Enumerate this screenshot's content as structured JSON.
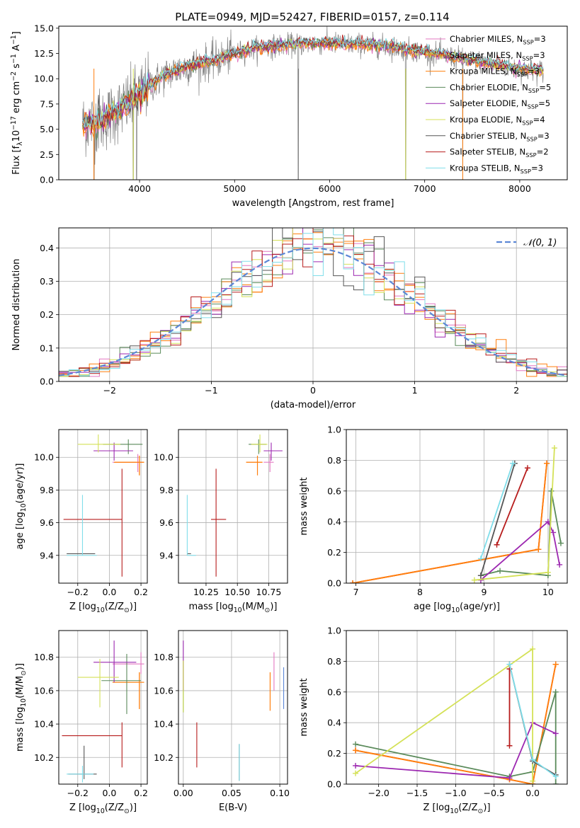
{
  "figure_title": "PLATE=0949, MJD=52427, FIBERID=0157, z=0.114",
  "models": [
    {
      "name": "Chabrier MILES, N$_{SSP}$=3",
      "legend": [
        "Chabrier MILES, N",
        "SSP",
        "=3"
      ],
      "color": "#e377c2"
    },
    {
      "name": "Salpeter MILES, N$_{SSP}$=3",
      "legend": [
        "Salpeter MILES, N",
        "SSP",
        "=3"
      ],
      "color": "#ff7f0e"
    },
    {
      "name": "Kroupa MILES, N$_{SSP}$=3",
      "legend": [
        "Kroupa MILES, N",
        "SSP",
        "=3"
      ],
      "color": "#ff7f0e"
    },
    {
      "name": "Chabrier ELODIE, N$_{SSP}$=5",
      "legend": [
        "Chabrier ELODIE, N",
        "SSP",
        "=5"
      ],
      "color": "#5a8a5a"
    },
    {
      "name": "Salpeter ELODIE, N$_{SSP}$=5",
      "legend": [
        "Salpeter ELODIE, N",
        "SSP",
        "=5"
      ],
      "color": "#9c27b0"
    },
    {
      "name": "Kroupa ELODIE, N$_{SSP}$=4",
      "legend": [
        "Kroupa ELODIE, N",
        "SSP",
        "=4"
      ],
      "color": "#d4e157"
    },
    {
      "name": "Chabrier STELIB, N$_{SSP}$=3",
      "legend": [
        "Chabrier STELIB, N",
        "SSP",
        "=3"
      ],
      "color": "#555555"
    },
    {
      "name": "Salpeter STELIB, N$_{SSP}$=2",
      "legend": [
        "Salpeter STELIB, N",
        "SSP",
        "=2"
      ],
      "color": "#b71c1c"
    },
    {
      "name": "Kroupa STELIB, N$_{SSP}$=3",
      "legend": [
        "Kroupa STELIB, N",
        "SSP",
        "=3"
      ],
      "color": "#80deea"
    }
  ],
  "chart_data": [
    {
      "id": "spectrum",
      "type": "line",
      "xlabel": "wavelength [Angstrom, rest frame]",
      "ylabel": "Flux [f$_\\lambda$10$^{-17}$ erg cm$^{-2}$ s$^{-1}$ A$^{-1}$]",
      "xlim": [
        3150,
        8500
      ],
      "ylim": [
        0,
        15.2
      ],
      "xticks": [
        4000,
        5000,
        6000,
        7000,
        8000
      ],
      "yticks": [
        0.0,
        2.5,
        5.0,
        7.5,
        10.0,
        12.5,
        15.0
      ],
      "ytick_labels": [
        "0.0",
        "2.5",
        "5.0",
        "7.5",
        "10.0",
        "12.5",
        "15.0"
      ],
      "grid": false,
      "legend_position": "right",
      "continuum": {
        "x": [
          3400,
          3600,
          3800,
          3950,
          4100,
          4300,
          4500,
          4800,
          5000,
          5200,
          5500,
          5800,
          6000,
          6300,
          6600,
          6900,
          7200,
          7500,
          7800,
          8000,
          8200
        ],
        "y": [
          5.5,
          5.8,
          7.0,
          8.0,
          9.3,
          10.5,
          11.2,
          11.8,
          12.5,
          13.0,
          13.3,
          13.5,
          13.5,
          13.4,
          13.2,
          12.8,
          12.3,
          11.8,
          11.3,
          10.9,
          10.8
        ]
      },
      "absorption_lines": [
        3520,
        3934,
        3969,
        5670,
        6800,
        7400
      ]
    },
    {
      "id": "residuals",
      "type": "step",
      "xlabel": "(data-model)/error",
      "ylabel": "Normed distribution",
      "xlim": [
        -2.5,
        2.5
      ],
      "ylim": [
        0,
        0.46
      ],
      "xticks": [
        -2,
        -1,
        0,
        1,
        2
      ],
      "xtick_labels": [
        "−2",
        "−1",
        "0",
        "1",
        "2"
      ],
      "yticks": [
        0.0,
        0.1,
        0.2,
        0.3,
        0.4
      ],
      "ytick_labels": [
        "0.0",
        "0.1",
        "0.2",
        "0.3",
        "0.4"
      ],
      "grid": true,
      "reference_curve": {
        "name": "$\\mathcal{N}(0,1)$",
        "label": "𝒩(0, 1)",
        "color": "#5c87d6",
        "mean": 0,
        "sigma": 1
      },
      "bin_width": 0.1,
      "legend_position": "top-right"
    },
    {
      "id": "age-vs-Z",
      "type": "errorbar",
      "xlabel": "Z [log$_{10}$(Z/Z$_\\odot$)]",
      "ylabel": "age  [log$_{10}$(age/yr)]",
      "xlim": [
        -0.32,
        0.24
      ],
      "ylim": [
        9.23,
        10.17
      ],
      "xticks": [
        -0.2,
        0.0,
        0.2
      ],
      "xtick_labels": [
        "−0.2",
        "0.0",
        "0.2"
      ],
      "yticks": [
        9.4,
        9.6,
        9.8,
        10.0
      ],
      "ytick_labels": [
        "9.4",
        "9.6",
        "9.8",
        "10.0"
      ],
      "grid": true,
      "points": [
        {
          "model": 0,
          "x": 0.18,
          "y": 9.97,
          "xerr": [
            0.16,
            0.03
          ],
          "yerr": [
            0.06,
            0.05
          ]
        },
        {
          "model": 1,
          "x": 0.19,
          "y": 9.97,
          "xerr": [
            0.16,
            0.03
          ],
          "yerr": [
            0.08,
            0.04
          ]
        },
        {
          "model": 2,
          "x": 0.19,
          "y": 9.97,
          "xerr": [
            0.16,
            0.03
          ],
          "yerr": [
            0.08,
            0.04
          ]
        },
        {
          "model": 3,
          "x": 0.12,
          "y": 10.08,
          "xerr": [
            0.16,
            0.09
          ],
          "yerr": [
            0.06,
            0.03
          ]
        },
        {
          "model": 4,
          "x": 0.03,
          "y": 10.04,
          "xerr": [
            0.13,
            0.12
          ],
          "yerr": [
            0.06,
            0.05
          ]
        },
        {
          "model": 5,
          "x": -0.07,
          "y": 10.08,
          "xerr": [
            0.13,
            0.14
          ],
          "yerr": [
            0.05,
            0.06
          ]
        },
        {
          "model": 6,
          "x": -0.16,
          "y": 9.41,
          "xerr": [
            0.11,
            0.07
          ],
          "yerr": [
            0.0,
            0.0
          ]
        },
        {
          "model": 7,
          "x": 0.08,
          "y": 9.62,
          "xerr": [
            0.37,
            0.0
          ],
          "yerr": [
            0.35,
            0.31
          ]
        },
        {
          "model": 8,
          "x": -0.17,
          "y": 9.4,
          "xerr": [
            0.1,
            0.09
          ],
          "yerr": [
            0.0,
            0.37
          ]
        }
      ]
    },
    {
      "id": "age-vs-mass",
      "type": "errorbar",
      "xlabel": "mass [log$_{10}$(M/M$_\\odot$)]",
      "ylabel": "",
      "xlim": [
        10.03,
        10.9
      ],
      "ylim": [
        9.23,
        10.17
      ],
      "xticks": [
        10.25,
        10.5,
        10.75
      ],
      "xtick_labels": [
        "10.25",
        "10.50",
        "10.75"
      ],
      "yticks": [
        9.4,
        9.6,
        9.8,
        10.0
      ],
      "ytick_labels": [
        "9.4",
        "9.6",
        "9.8",
        "10.0"
      ],
      "grid": true,
      "points": [
        {
          "model": 0,
          "x": 10.76,
          "y": 9.97,
          "xerr": [
            0.05,
            0.03
          ],
          "yerr": [
            0.06,
            0.05
          ]
        },
        {
          "model": 1,
          "x": 10.66,
          "y": 9.97,
          "xerr": [
            0.09,
            0.04
          ],
          "yerr": [
            0.08,
            0.04
          ]
        },
        {
          "model": 2,
          "x": 10.66,
          "y": 9.97,
          "xerr": [
            0.09,
            0.04
          ],
          "yerr": [
            0.08,
            0.04
          ]
        },
        {
          "model": 3,
          "x": 10.67,
          "y": 10.08,
          "xerr": [
            0.08,
            0.06
          ],
          "yerr": [
            0.06,
            0.03
          ]
        },
        {
          "model": 4,
          "x": 10.77,
          "y": 10.04,
          "xerr": [
            0.06,
            0.09
          ],
          "yerr": [
            0.06,
            0.05
          ]
        },
        {
          "model": 5,
          "x": 10.68,
          "y": 10.08,
          "xerr": [
            0.07,
            0.06
          ],
          "yerr": [
            0.05,
            0.06
          ]
        },
        {
          "model": 6,
          "x": 10.1,
          "y": 9.41,
          "xerr": [
            0.0,
            0.03
          ],
          "yerr": [
            0.0,
            0.0
          ]
        },
        {
          "model": 7,
          "x": 10.33,
          "y": 9.62,
          "xerr": [
            0.04,
            0.08
          ],
          "yerr": [
            0.35,
            0.31
          ]
        },
        {
          "model": 8,
          "x": 10.1,
          "y": 9.4,
          "xerr": [
            0.0,
            0.07
          ],
          "yerr": [
            0.0,
            0.37
          ]
        }
      ]
    },
    {
      "id": "weight-vs-age",
      "type": "line",
      "xlabel": "age  [log$_{10}$(age/yr)]",
      "ylabel": "mass weight",
      "xlim": [
        6.85,
        10.3
      ],
      "ylim": [
        0,
        1.0
      ],
      "xticks": [
        7,
        8,
        9,
        10
      ],
      "yticks": [
        0.0,
        0.2,
        0.4,
        0.6,
        0.8,
        1.0
      ],
      "ytick_labels": [
        "0.0",
        "0.2",
        "0.4",
        "0.6",
        "0.8",
        "1.0"
      ],
      "grid": true,
      "series": [
        {
          "model": 0,
          "x": [
            6.95,
            9.85,
            9.98
          ],
          "y": [
            0.0,
            0.22,
            0.78
          ]
        },
        {
          "model": 1,
          "x": [
            6.95,
            9.85,
            9.98
          ],
          "y": [
            0.0,
            0.22,
            0.78
          ]
        },
        {
          "model": 2,
          "x": [
            6.95,
            9.85,
            9.98
          ],
          "y": [
            0.0,
            0.22,
            0.78
          ]
        },
        {
          "model": 3,
          "x": [
            8.95,
            9.25,
            10.0,
            10.05,
            10.2
          ],
          "y": [
            0.05,
            0.08,
            0.05,
            0.6,
            0.26
          ]
        },
        {
          "model": 4,
          "x": [
            8.95,
            10.0,
            10.08,
            10.18
          ],
          "y": [
            0.02,
            0.4,
            0.33,
            0.12
          ]
        },
        {
          "model": 5,
          "x": [
            8.85,
            10.0,
            10.1
          ],
          "y": [
            0.02,
            0.07,
            0.88
          ]
        },
        {
          "model": 6,
          "x": [
            8.95,
            9.48
          ],
          "y": [
            0.05,
            0.78
          ]
        },
        {
          "model": 7,
          "x": [
            9.2,
            9.68
          ],
          "y": [
            0.25,
            0.75
          ]
        },
        {
          "model": 8,
          "x": [
            8.95,
            9.45
          ],
          "y": [
            0.16,
            0.78
          ]
        }
      ]
    },
    {
      "id": "mass-vs-Z",
      "type": "errorbar",
      "xlabel": "Z [log$_{10}$(Z/Z$_\\odot$)]",
      "ylabel": "mass [log$_{10}$(M/M$_\\odot$)]",
      "xlim": [
        -0.32,
        0.24
      ],
      "ylim": [
        10.04,
        10.96
      ],
      "xticks": [
        -0.2,
        0.0,
        0.2
      ],
      "xtick_labels": [
        "−0.2",
        "0.0",
        "0.2"
      ],
      "yticks": [
        10.2,
        10.4,
        10.6,
        10.8
      ],
      "ytick_labels": [
        "10.2",
        "10.4",
        "10.6",
        "10.8"
      ],
      "grid": true,
      "points": [
        {
          "model": 0,
          "x": 0.2,
          "y": 10.76,
          "xerr": [
            0.18,
            0.02
          ],
          "yerr": [
            0.06,
            0.07
          ]
        },
        {
          "model": 1,
          "x": 0.19,
          "y": 10.65,
          "xerr": [
            0.17,
            0.03
          ],
          "yerr": [
            0.16,
            0.06
          ]
        },
        {
          "model": 2,
          "x": 0.19,
          "y": 10.65,
          "xerr": [
            0.17,
            0.03
          ],
          "yerr": [
            0.16,
            0.06
          ]
        },
        {
          "model": 3,
          "x": 0.11,
          "y": 10.66,
          "xerr": [
            0.16,
            0.09
          ],
          "yerr": [
            0.2,
            0.16
          ]
        },
        {
          "model": 4,
          "x": 0.03,
          "y": 10.77,
          "xerr": [
            0.13,
            0.14
          ],
          "yerr": [
            0.12,
            0.13
          ]
        },
        {
          "model": 5,
          "x": -0.06,
          "y": 10.68,
          "xerr": [
            0.14,
            0.12
          ],
          "yerr": [
            0.18,
            0.11
          ]
        },
        {
          "model": 6,
          "x": -0.16,
          "y": 10.1,
          "xerr": [
            0.1,
            0.08
          ],
          "yerr": [
            0.03,
            0.17
          ]
        },
        {
          "model": 7,
          "x": 0.08,
          "y": 10.33,
          "xerr": [
            0.38,
            0.0
          ],
          "yerr": [
            0.19,
            0.08
          ]
        },
        {
          "model": 8,
          "x": -0.17,
          "y": 10.1,
          "xerr": [
            0.1,
            0.07
          ],
          "yerr": [
            0.05,
            0.05
          ]
        }
      ]
    },
    {
      "id": "mass-vs-EBV",
      "type": "errorbar",
      "xlabel": "E(B-V)",
      "ylabel": "",
      "xlim": [
        -0.005,
        0.108
      ],
      "ylim": [
        10.04,
        10.96
      ],
      "xticks": [
        0.0,
        0.05,
        0.1
      ],
      "xtick_labels": [
        "0.00",
        "0.05",
        "0.10"
      ],
      "yticks": [
        10.2,
        10.4,
        10.6,
        10.8
      ],
      "ytick_labels": [
        "10.2",
        "10.4",
        "10.6",
        "10.8"
      ],
      "grid": true,
      "points": [
        {
          "model": 0,
          "x": 0.094,
          "y": 10.72,
          "xerr": [
            0,
            0
          ],
          "yerr": [
            0.12,
            0.11
          ]
        },
        {
          "model": 1,
          "x": 0.09,
          "y": 10.6,
          "xerr": [
            0,
            0
          ],
          "yerr": [
            0.12,
            0.11
          ]
        },
        {
          "model": 2,
          "x": 0.09,
          "y": 10.6,
          "xerr": [
            0,
            0
          ],
          "yerr": [
            0.12,
            0.11
          ]
        },
        {
          "model": 3,
          "x": 0.0,
          "y": 10.66,
          "xerr": [
            0,
            0
          ],
          "yerr": [
            0.19,
            0.12
          ]
        },
        {
          "model": 4,
          "x": 0.0,
          "y": 10.78,
          "xerr": [
            0,
            0
          ],
          "yerr": [
            0.18,
            0.12
          ]
        },
        {
          "model": 5,
          "x": 0.0,
          "y": 10.67,
          "xerr": [
            0,
            0
          ],
          "yerr": [
            0.2,
            0.11
          ]
        },
        {
          "model": 6,
          "x": 0.058,
          "y": 10.16,
          "xerr": [
            0,
            0
          ],
          "yerr": [
            0.1,
            0.12
          ]
        },
        {
          "model": 7,
          "x": 0.014,
          "y": 10.27,
          "xerr": [
            0,
            0
          ],
          "yerr": [
            0.13,
            0.14
          ]
        },
        {
          "model": 8,
          "x": 0.058,
          "y": 10.16,
          "xerr": [
            0,
            0
          ],
          "yerr": [
            0.1,
            0.12
          ]
        },
        {
          "model": -1,
          "color": "#5c87d6",
          "x": 0.104,
          "y": 10.62,
          "xerr": [
            0,
            0
          ],
          "yerr": [
            0.13,
            0.12
          ]
        }
      ]
    },
    {
      "id": "weight-vs-Z",
      "type": "line",
      "xlabel": "Z [log$_{10}$(Z/Z$_\\odot$)]",
      "ylabel": "mass weight",
      "xlim": [
        -2.42,
        0.45
      ],
      "ylim": [
        0,
        1.0
      ],
      "xticks": [
        -2.0,
        -1.5,
        -1.0,
        -0.5,
        0.0
      ],
      "xtick_labels": [
        "−2.0",
        "−1.5",
        "−1.0",
        "−0.5",
        "0.0"
      ],
      "yticks": [
        0.0,
        0.2,
        0.4,
        0.6,
        0.8,
        1.0
      ],
      "ytick_labels": [
        "0.0",
        "0.2",
        "0.4",
        "0.6",
        "0.8",
        "1.0"
      ],
      "grid": true,
      "series": [
        {
          "model": 0,
          "x": [
            -2.3,
            -0.3,
            0.0,
            0.3
          ],
          "y": [
            0.22,
            0.03,
            0.0,
            0.78
          ]
        },
        {
          "model": 1,
          "x": [
            -2.3,
            -0.3,
            0.0,
            0.3
          ],
          "y": [
            0.22,
            0.03,
            0.0,
            0.78
          ]
        },
        {
          "model": 2,
          "x": [
            -2.3,
            -0.3,
            0.0,
            0.3
          ],
          "y": [
            0.22,
            0.03,
            0.0,
            0.78
          ]
        },
        {
          "model": 3,
          "x": [
            -2.3,
            -0.3,
            0.0,
            0.3,
            0.3
          ],
          "y": [
            0.26,
            0.05,
            0.08,
            0.6,
            0.0
          ]
        },
        {
          "model": 4,
          "x": [
            -2.3,
            -0.3,
            0.0,
            0.3
          ],
          "y": [
            0.12,
            0.04,
            0.4,
            0.33
          ]
        },
        {
          "model": 5,
          "x": [
            -2.3,
            0.0,
            0.0
          ],
          "y": [
            0.07,
            0.88,
            0.02
          ]
        },
        {
          "model": 6,
          "x": [
            -0.3,
            0.0,
            0.3
          ],
          "y": [
            0.78,
            0.15,
            0.06
          ]
        },
        {
          "model": 7,
          "x": [
            -0.3,
            -0.3
          ],
          "y": [
            0.25,
            0.75
          ]
        },
        {
          "model": 8,
          "x": [
            -0.3,
            0.0,
            0.3
          ],
          "y": [
            0.78,
            0.16,
            0.05
          ]
        }
      ]
    }
  ]
}
